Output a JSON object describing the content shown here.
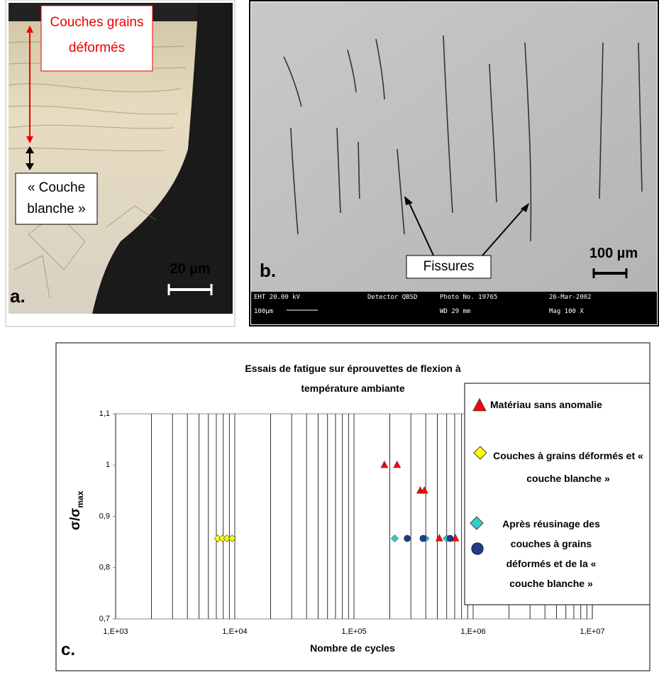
{
  "panel_a": {
    "label": "a.",
    "annotation_top": "Couches grains déformés",
    "annotation_bottom": "« Couche blanche »",
    "scale": "20 µm"
  },
  "panel_b": {
    "label": "b.",
    "annotation": "Fissures",
    "scale": "100 µm",
    "info_bar": [
      "EHT 20.00 kV",
      "Detector QBSD",
      "Photo No. 19765",
      "26-Mar-2002",
      "100µm",
      "WD 29 mm",
      "Mag 100 X"
    ]
  },
  "panel_c_label": "c.",
  "chart_data": {
    "type": "scatter",
    "title": "Essais de fatigue sur éprouvettes de flexion à température ambiante",
    "x_label": "Nombre de cycles",
    "y_label_parts": [
      "σ/σ",
      "max"
    ],
    "xlim": [
      1000,
      10000000
    ],
    "x_log": true,
    "xticks": [
      {
        "value": 1000,
        "label": "1,E+03"
      },
      {
        "value": 10000,
        "label": "1,E+04"
      },
      {
        "value": 100000,
        "label": "1,E+05"
      },
      {
        "value": 1000000,
        "label": "1,E+06"
      },
      {
        "value": 10000000,
        "label": "1,E+07"
      }
    ],
    "ylim": [
      0.7,
      1.1
    ],
    "yticks": [
      {
        "value": 0.7,
        "label": "0,7"
      },
      {
        "value": 0.8,
        "label": "0,8"
      },
      {
        "value": 0.9,
        "label": "0,9"
      },
      1,
      {
        "value": 1.1,
        "label": "1,1"
      }
    ],
    "x_grid": true,
    "x_minor_grid": true,
    "series": [
      {
        "name": "Matériau sans anomalie",
        "color": "#ff0000",
        "marker": "triangle",
        "x": [
          180000,
          230000,
          360000,
          390000,
          520000,
          710000
        ],
        "values": [
          1.0,
          1.0,
          0.95,
          0.95,
          0.857,
          0.857
        ]
      },
      {
        "name": "Couches à grains déformés et « couche blanche »",
        "color": "#ffff00",
        "marker": "diamond",
        "x": [
          7200,
          7900,
          8600,
          9500
        ],
        "values": [
          0.857,
          0.857,
          0.857,
          0.857
        ]
      },
      {
        "name": "Après réusinage des couches à grains déformés et de la « couche blanche »",
        "color": "#33cccc",
        "marker": "diamond",
        "x": [
          220000,
          400000,
          600000
        ],
        "values": [
          0.857,
          0.857,
          0.857
        ]
      },
      {
        "color": "#1f3c88",
        "marker": "circle",
        "x": [
          280000,
          380000,
          640000
        ],
        "values": [
          0.857,
          0.857,
          0.857
        ]
      }
    ]
  }
}
